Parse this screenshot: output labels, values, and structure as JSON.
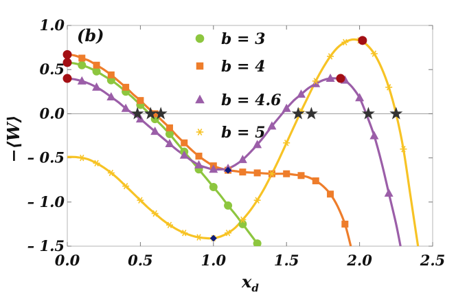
{
  "chart_data": {
    "type": "line",
    "panel_label": "(b)",
    "xlabel": "x",
    "xlabel_sub": "d",
    "ylabel": "−⟨W⟩",
    "xlim": [
      0.0,
      2.5
    ],
    "ylim": [
      -1.5,
      1.0
    ],
    "xticks": [
      0.0,
      0.5,
      1.0,
      1.5,
      2.0,
      2.5
    ],
    "xtick_labels": [
      "0.0",
      "0.5",
      "1.0",
      "1.5",
      "2.0",
      "2.5"
    ],
    "yticks": [
      1.0,
      0.5,
      0.0,
      -0.5,
      -1.0,
      -1.5
    ],
    "ytick_labels": [
      "1.0",
      "0.5",
      "0.0",
      "– 0.5",
      "– 1.0",
      "– 1.5"
    ],
    "zero_line": true,
    "legend_position": "top-center",
    "series": [
      {
        "name": "b = 3",
        "color": "#8dc63f",
        "marker": "circle",
        "curve": [
          [
            0,
            0.58
          ],
          [
            0.05,
            0.57
          ],
          [
            0.1,
            0.55
          ],
          [
            0.15,
            0.52
          ],
          [
            0.2,
            0.48
          ],
          [
            0.25,
            0.43
          ],
          [
            0.3,
            0.38
          ],
          [
            0.35,
            0.32
          ],
          [
            0.4,
            0.25
          ],
          [
            0.45,
            0.18
          ],
          [
            0.5,
            0.1
          ],
          [
            0.55,
            0.02
          ],
          [
            0.6,
            -0.06
          ],
          [
            0.65,
            -0.14
          ],
          [
            0.7,
            -0.23
          ],
          [
            0.75,
            -0.33
          ],
          [
            0.8,
            -0.43
          ],
          [
            0.85,
            -0.53
          ],
          [
            0.9,
            -0.63
          ],
          [
            0.95,
            -0.73
          ],
          [
            1.0,
            -0.83
          ],
          [
            1.05,
            -0.93
          ],
          [
            1.1,
            -1.04
          ],
          [
            1.15,
            -1.14
          ],
          [
            1.2,
            -1.25
          ],
          [
            1.25,
            -1.36
          ],
          [
            1.3,
            -1.47
          ]
        ],
        "points": [
          [
            0.1,
            0.55
          ],
          [
            0.2,
            0.48
          ],
          [
            0.3,
            0.38
          ],
          [
            0.4,
            0.25
          ],
          [
            0.5,
            0.1
          ],
          [
            0.6,
            -0.06
          ],
          [
            0.7,
            -0.23
          ],
          [
            0.8,
            -0.43
          ],
          [
            0.9,
            -0.63
          ],
          [
            1.0,
            -0.83
          ],
          [
            1.1,
            -1.04
          ],
          [
            1.2,
            -1.25
          ],
          [
            1.3,
            -1.47
          ]
        ]
      },
      {
        "name": "b = 4",
        "color": "#ee7d2b",
        "marker": "square",
        "curve": [
          [
            0,
            0.67
          ],
          [
            0.05,
            0.66
          ],
          [
            0.1,
            0.63
          ],
          [
            0.15,
            0.6
          ],
          [
            0.2,
            0.55
          ],
          [
            0.25,
            0.5
          ],
          [
            0.3,
            0.44
          ],
          [
            0.35,
            0.37
          ],
          [
            0.4,
            0.3
          ],
          [
            0.45,
            0.22
          ],
          [
            0.5,
            0.15
          ],
          [
            0.55,
            0.07
          ],
          [
            0.6,
            0.0
          ],
          [
            0.65,
            -0.08
          ],
          [
            0.7,
            -0.16
          ],
          [
            0.75,
            -0.25
          ],
          [
            0.8,
            -0.33
          ],
          [
            0.85,
            -0.41
          ],
          [
            0.9,
            -0.48
          ],
          [
            0.95,
            -0.54
          ],
          [
            1.0,
            -0.59
          ],
          [
            1.05,
            -0.62
          ],
          [
            1.1,
            -0.64
          ],
          [
            1.15,
            -0.65
          ],
          [
            1.2,
            -0.66
          ],
          [
            1.3,
            -0.67
          ],
          [
            1.4,
            -0.68
          ],
          [
            1.5,
            -0.68
          ],
          [
            1.55,
            -0.69
          ],
          [
            1.6,
            -0.7
          ],
          [
            1.65,
            -0.72
          ],
          [
            1.7,
            -0.76
          ],
          [
            1.75,
            -0.82
          ],
          [
            1.8,
            -0.91
          ],
          [
            1.85,
            -1.05
          ],
          [
            1.9,
            -1.25
          ],
          [
            1.94,
            -1.5
          ]
        ],
        "points": [
          [
            0.1,
            0.63
          ],
          [
            0.2,
            0.55
          ],
          [
            0.3,
            0.44
          ],
          [
            0.4,
            0.3
          ],
          [
            0.5,
            0.15
          ],
          [
            0.6,
            0.0
          ],
          [
            0.7,
            -0.16
          ],
          [
            0.8,
            -0.33
          ],
          [
            0.9,
            -0.48
          ],
          [
            1.0,
            -0.59
          ],
          [
            1.1,
            -0.64
          ],
          [
            1.2,
            -0.66
          ],
          [
            1.3,
            -0.67
          ],
          [
            1.4,
            -0.68
          ],
          [
            1.5,
            -0.68
          ],
          [
            1.6,
            -0.7
          ],
          [
            1.7,
            -0.76
          ],
          [
            1.8,
            -0.91
          ],
          [
            1.9,
            -1.25
          ]
        ]
      },
      {
        "name": "b = 4.6",
        "color": "#9b5ea8",
        "marker": "triangle",
        "curve": [
          [
            0,
            0.4
          ],
          [
            0.05,
            0.39
          ],
          [
            0.1,
            0.37
          ],
          [
            0.15,
            0.34
          ],
          [
            0.2,
            0.3
          ],
          [
            0.25,
            0.25
          ],
          [
            0.3,
            0.19
          ],
          [
            0.35,
            0.13
          ],
          [
            0.4,
            0.06
          ],
          [
            0.45,
            0.0
          ],
          [
            0.5,
            -0.06
          ],
          [
            0.55,
            -0.13
          ],
          [
            0.6,
            -0.2
          ],
          [
            0.65,
            -0.27
          ],
          [
            0.7,
            -0.34
          ],
          [
            0.75,
            -0.41
          ],
          [
            0.8,
            -0.47
          ],
          [
            0.85,
            -0.53
          ],
          [
            0.9,
            -0.58
          ],
          [
            0.95,
            -0.61
          ],
          [
            1.0,
            -0.63
          ],
          [
            1.05,
            -0.63
          ],
          [
            1.1,
            -0.62
          ],
          [
            1.15,
            -0.58
          ],
          [
            1.2,
            -0.52
          ],
          [
            1.25,
            -0.44
          ],
          [
            1.3,
            -0.35
          ],
          [
            1.35,
            -0.25
          ],
          [
            1.4,
            -0.14
          ],
          [
            1.45,
            -0.04
          ],
          [
            1.5,
            0.06
          ],
          [
            1.55,
            0.15
          ],
          [
            1.6,
            0.22
          ],
          [
            1.65,
            0.29
          ],
          [
            1.7,
            0.34
          ],
          [
            1.75,
            0.38
          ],
          [
            1.8,
            0.4
          ],
          [
            1.85,
            0.4
          ],
          [
            1.88,
            0.4
          ],
          [
            1.9,
            0.38
          ],
          [
            1.95,
            0.3
          ],
          [
            2.0,
            0.18
          ],
          [
            2.05,
            -0.02
          ],
          [
            2.1,
            -0.25
          ],
          [
            2.15,
            -0.55
          ],
          [
            2.2,
            -0.9
          ],
          [
            2.25,
            -1.25
          ],
          [
            2.28,
            -1.5
          ]
        ],
        "points": [
          [
            0.1,
            0.37
          ],
          [
            0.2,
            0.3
          ],
          [
            0.3,
            0.19
          ],
          [
            0.4,
            0.06
          ],
          [
            0.5,
            -0.06
          ],
          [
            0.6,
            -0.2
          ],
          [
            0.7,
            -0.34
          ],
          [
            0.8,
            -0.47
          ],
          [
            0.9,
            -0.58
          ],
          [
            1.0,
            -0.63
          ],
          [
            1.1,
            -0.62
          ],
          [
            1.2,
            -0.52
          ],
          [
            1.3,
            -0.35
          ],
          [
            1.4,
            -0.14
          ],
          [
            1.5,
            0.06
          ],
          [
            1.6,
            0.22
          ],
          [
            1.7,
            0.34
          ],
          [
            1.8,
            0.4
          ],
          [
            1.9,
            0.38
          ],
          [
            2.0,
            0.18
          ],
          [
            2.1,
            -0.25
          ],
          [
            2.2,
            -0.9
          ]
        ]
      },
      {
        "name": "b = 5",
        "color": "#f7c325",
        "marker": "star",
        "curve": [
          [
            0,
            -0.49
          ],
          [
            0.05,
            -0.49
          ],
          [
            0.1,
            -0.5
          ],
          [
            0.15,
            -0.52
          ],
          [
            0.2,
            -0.56
          ],
          [
            0.25,
            -0.61
          ],
          [
            0.3,
            -0.67
          ],
          [
            0.35,
            -0.74
          ],
          [
            0.4,
            -0.82
          ],
          [
            0.45,
            -0.9
          ],
          [
            0.5,
            -0.98
          ],
          [
            0.55,
            -1.06
          ],
          [
            0.6,
            -1.13
          ],
          [
            0.65,
            -1.2
          ],
          [
            0.7,
            -1.26
          ],
          [
            0.75,
            -1.31
          ],
          [
            0.8,
            -1.35
          ],
          [
            0.85,
            -1.38
          ],
          [
            0.9,
            -1.4
          ],
          [
            0.95,
            -1.41
          ],
          [
            1.0,
            -1.41
          ],
          [
            1.05,
            -1.39
          ],
          [
            1.1,
            -1.35
          ],
          [
            1.15,
            -1.29
          ],
          [
            1.2,
            -1.2
          ],
          [
            1.25,
            -1.1
          ],
          [
            1.3,
            -0.98
          ],
          [
            1.35,
            -0.84
          ],
          [
            1.4,
            -0.68
          ],
          [
            1.45,
            -0.51
          ],
          [
            1.5,
            -0.33
          ],
          [
            1.55,
            -0.15
          ],
          [
            1.6,
            0.03
          ],
          [
            1.65,
            0.2
          ],
          [
            1.7,
            0.37
          ],
          [
            1.75,
            0.52
          ],
          [
            1.8,
            0.65
          ],
          [
            1.85,
            0.75
          ],
          [
            1.9,
            0.81
          ],
          [
            1.95,
            0.84
          ],
          [
            2.0,
            0.83
          ],
          [
            2.05,
            0.78
          ],
          [
            2.1,
            0.68
          ],
          [
            2.15,
            0.52
          ],
          [
            2.2,
            0.3
          ],
          [
            2.25,
            0.0
          ],
          [
            2.3,
            -0.4
          ],
          [
            2.35,
            -0.95
          ],
          [
            2.4,
            -1.5
          ]
        ],
        "points": [
          [
            0.1,
            -0.5
          ],
          [
            0.2,
            -0.56
          ],
          [
            0.3,
            -0.67
          ],
          [
            0.4,
            -0.82
          ],
          [
            0.5,
            -0.98
          ],
          [
            0.6,
            -1.13
          ],
          [
            0.7,
            -1.26
          ],
          [
            0.8,
            -1.35
          ],
          [
            0.9,
            -1.4
          ],
          [
            1.0,
            -1.41
          ],
          [
            1.1,
            -1.35
          ],
          [
            1.2,
            -1.2
          ],
          [
            1.3,
            -0.98
          ],
          [
            1.4,
            -0.68
          ],
          [
            1.5,
            -0.33
          ],
          [
            1.6,
            0.03
          ],
          [
            1.7,
            0.37
          ],
          [
            1.8,
            0.65
          ],
          [
            1.9,
            0.81
          ],
          [
            2.0,
            0.83
          ],
          [
            2.1,
            0.68
          ],
          [
            2.2,
            0.3
          ],
          [
            2.3,
            -0.4
          ]
        ]
      }
    ],
    "special_points": {
      "red_circles": [
        [
          0.0,
          0.67
        ],
        [
          0.0,
          0.58
        ],
        [
          0.0,
          0.4
        ],
        [
          1.87,
          0.4
        ],
        [
          2.02,
          0.83
        ]
      ],
      "red_color": "#a30f14",
      "blue_diamonds": [
        [
          1.0,
          -1.41
        ],
        [
          1.1,
          -0.64
        ]
      ],
      "blue_color": "#0c1a7a",
      "black_stars": [
        [
          0.48,
          0.0
        ],
        [
          0.57,
          0.0
        ],
        [
          0.64,
          0.0
        ],
        [
          1.58,
          0.0
        ],
        [
          1.67,
          0.0
        ],
        [
          2.06,
          0.0
        ],
        [
          2.25,
          0.0
        ]
      ],
      "star_color": "#333333"
    }
  }
}
